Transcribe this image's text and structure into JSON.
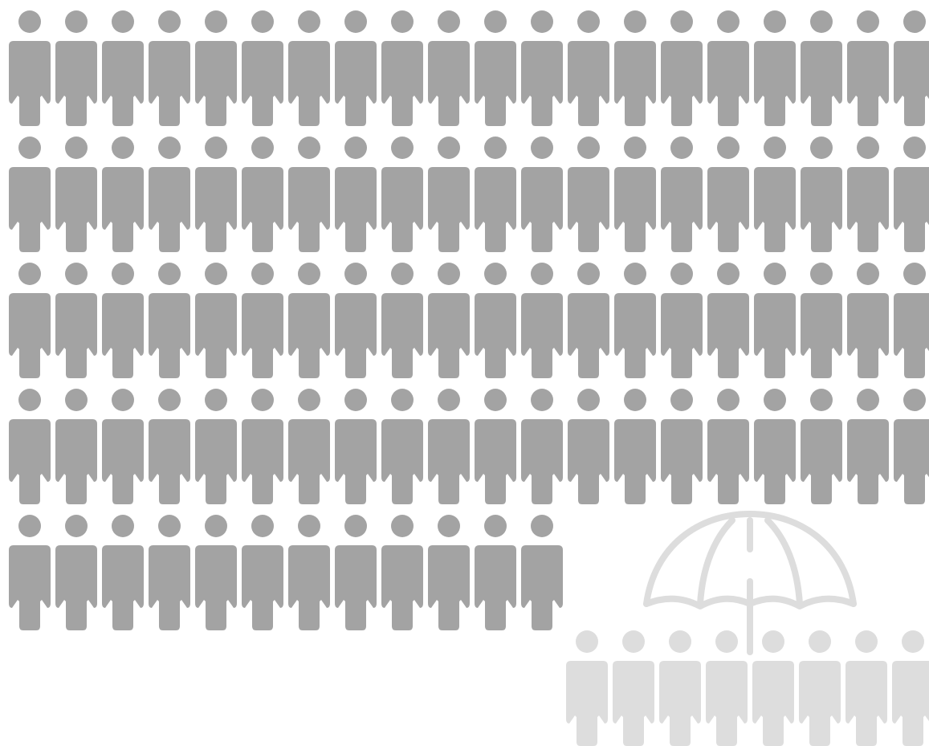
{
  "colors": {
    "background": "#ffffff",
    "dark_figure": "#a3a3a3",
    "light_figure": "#dddddd",
    "umbrella": "#dddddd"
  },
  "icons": {
    "figure": "person-icon",
    "shelter": "umbrella-icon"
  },
  "pictogram": {
    "dark_rows": [
      20,
      20,
      20,
      20,
      12
    ],
    "dark_count": 92,
    "light_count": 8
  }
}
